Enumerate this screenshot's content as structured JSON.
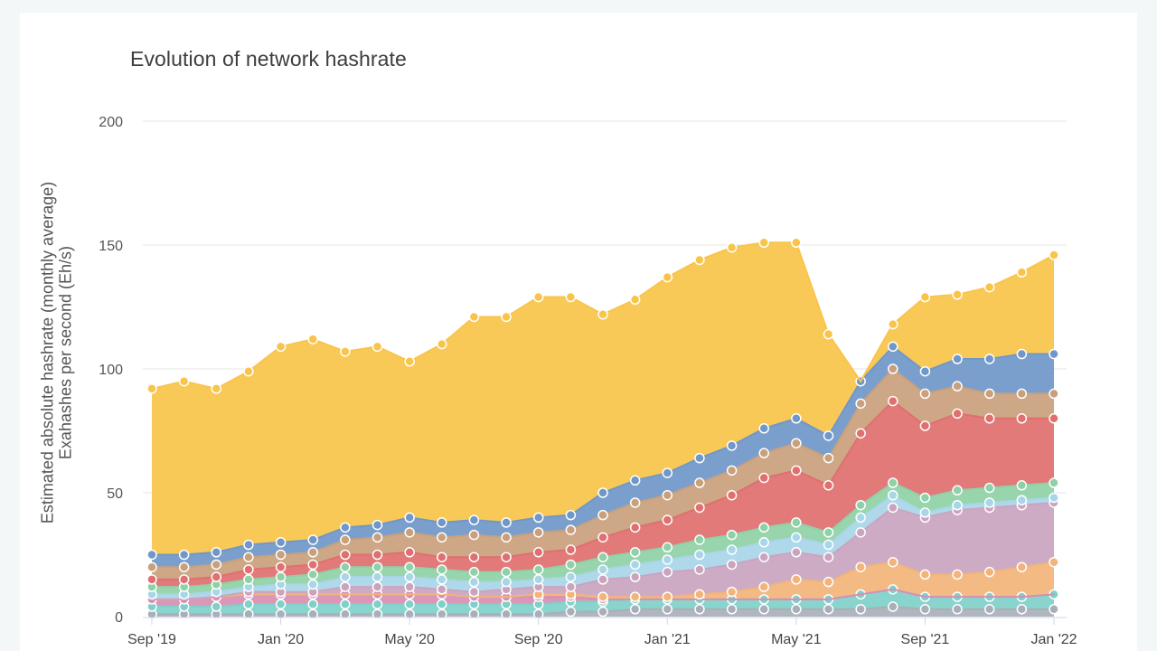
{
  "chart_data": {
    "type": "area",
    "title": "Evolution of network hashrate",
    "ylabel": [
      "Estimated absolute hashrate (monthly average)",
      "Exahashes per second (Eh/s)"
    ],
    "xlabel": "",
    "ylim": [
      0,
      200
    ],
    "yticks": [
      0,
      50,
      100,
      150,
      200
    ],
    "xticks": [
      "Sep '19",
      "Jan '20",
      "May '20",
      "Sep '20",
      "Jan '21",
      "May '21",
      "Sep '21",
      "Jan '22"
    ],
    "stacked": true,
    "grid": true,
    "months": [
      "2019-09",
      "2019-10",
      "2019-11",
      "2019-12",
      "2020-01",
      "2020-02",
      "2020-03",
      "2020-04",
      "2020-05",
      "2020-06",
      "2020-07",
      "2020-08",
      "2020-09",
      "2020-10",
      "2020-11",
      "2020-12",
      "2021-01",
      "2021-02",
      "2021-03",
      "2021-04",
      "2021-05",
      "2021-06",
      "2021-07",
      "2021-08",
      "2021-09",
      "2021-10",
      "2021-11",
      "2021-12",
      "2022-01"
    ],
    "series": [
      {
        "color": "#a9afb8",
        "values": [
          1,
          1,
          1,
          1,
          1,
          1,
          1,
          1,
          1,
          1,
          1,
          1,
          1,
          2,
          2,
          3,
          3,
          3,
          3,
          3,
          3,
          3,
          3,
          4,
          3,
          3,
          3,
          3,
          3
        ]
      },
      {
        "color": "#7fd0c8",
        "values": [
          3,
          3,
          3,
          4,
          4,
          4,
          4,
          4,
          4,
          4,
          4,
          4,
          4,
          4,
          4,
          4,
          4,
          4,
          4,
          4,
          4,
          4,
          6,
          7,
          5,
          5,
          5,
          5,
          6
        ]
      },
      {
        "color": "#d68fb4",
        "values": [
          3,
          3,
          4,
          4,
          4,
          4,
          4,
          4,
          4,
          4,
          3,
          3,
          3,
          2,
          1,
          0,
          0,
          0,
          0,
          0,
          0,
          0,
          0,
          0,
          0,
          0,
          0,
          0,
          0
        ]
      },
      {
        "color": "#f2b47a",
        "values": [
          0,
          0,
          0,
          0,
          0,
          0,
          0,
          0,
          0,
          0,
          0,
          0,
          1,
          1,
          1,
          1,
          1,
          2,
          3,
          5,
          8,
          7,
          11,
          11,
          9,
          9,
          10,
          12,
          13
        ]
      },
      {
        "color": "#caa4bf",
        "values": [
          0,
          0,
          0,
          1,
          1,
          1,
          3,
          3,
          3,
          2,
          2,
          3,
          3,
          3,
          7,
          8,
          10,
          10,
          11,
          12,
          11,
          10,
          14,
          22,
          23,
          26,
          26,
          25,
          24
        ]
      },
      {
        "color": "#a8d6e8",
        "values": [
          2,
          2,
          2,
          2,
          3,
          3,
          4,
          4,
          4,
          4,
          4,
          3,
          3,
          4,
          4,
          5,
          5,
          6,
          6,
          6,
          6,
          5,
          6,
          5,
          2,
          2,
          2,
          2,
          2
        ]
      },
      {
        "color": "#8fd1a6",
        "values": [
          3,
          3,
          3,
          3,
          3,
          4,
          4,
          4,
          4,
          4,
          4,
          4,
          4,
          5,
          5,
          5,
          5,
          6,
          6,
          6,
          6,
          5,
          5,
          5,
          6,
          6,
          6,
          6,
          6
        ]
      },
      {
        "color": "#e06f6f",
        "values": [
          3,
          3,
          3,
          4,
          4,
          4,
          5,
          5,
          6,
          5,
          6,
          6,
          7,
          6,
          8,
          10,
          11,
          13,
          16,
          20,
          21,
          19,
          29,
          33,
          29,
          31,
          28,
          27,
          26
        ]
      },
      {
        "color": "#c9a07c",
        "values": [
          5,
          5,
          5,
          5,
          5,
          5,
          6,
          7,
          8,
          8,
          9,
          8,
          8,
          8,
          9,
          10,
          10,
          10,
          10,
          10,
          11,
          11,
          12,
          13,
          13,
          11,
          10,
          10,
          10
        ]
      },
      {
        "color": "#6f97c9",
        "values": [
          5,
          5,
          5,
          5,
          5,
          5,
          5,
          5,
          6,
          6,
          6,
          6,
          6,
          6,
          9,
          9,
          9,
          10,
          10,
          10,
          10,
          9,
          9,
          9,
          9,
          11,
          14,
          16,
          16
        ]
      },
      {
        "color": "#f9c44a",
        "values": [
          67,
          70,
          66,
          70,
          79,
          81,
          71,
          72,
          63,
          72,
          82,
          83,
          89,
          88,
          72,
          73,
          79,
          80,
          80,
          75,
          71,
          41,
          0,
          9,
          30,
          26,
          29,
          33,
          40
        ]
      }
    ]
  },
  "colors": {
    "grid": "#e6e6e6",
    "axis": "#ccd6eb",
    "marker_stroke": "#ffffff"
  }
}
